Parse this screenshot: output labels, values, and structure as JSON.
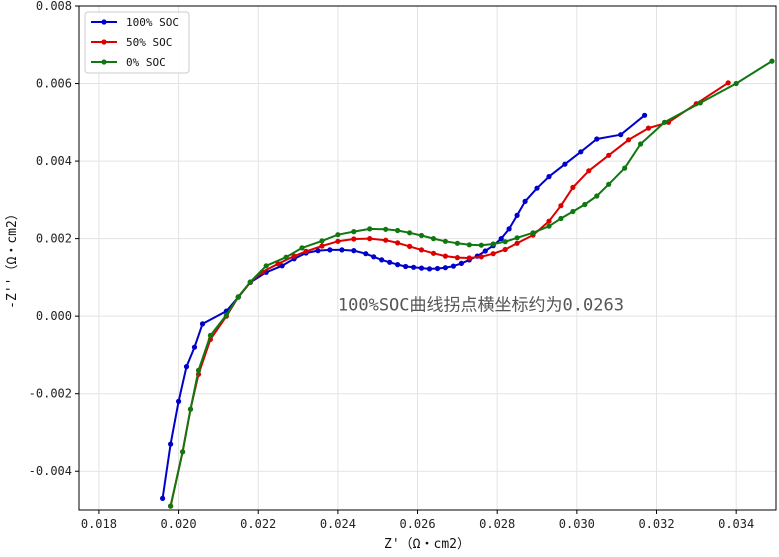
{
  "chart_data": {
    "type": "line",
    "title": "",
    "xlabel": "Z'（Ω・cm2）",
    "ylabel": "-Z''（Ω・cm2）",
    "xlim": [
      0.0175,
      0.035
    ],
    "ylim": [
      -0.005,
      0.008
    ],
    "x_ticks": [
      0.018,
      0.02,
      0.022,
      0.024,
      0.026,
      0.028,
      0.03,
      0.032,
      0.034
    ],
    "x_tick_labels": [
      "0.018",
      "0.020",
      "0.022",
      "0.024",
      "0.026",
      "0.028",
      "0.030",
      "0.032",
      "0.034"
    ],
    "y_ticks": [
      -0.004,
      -0.002,
      0.0,
      0.002,
      0.004,
      0.006,
      0.008
    ],
    "y_tick_labels": [
      "-0.004",
      "-0.002",
      "0.000",
      "0.002",
      "0.004",
      "0.006",
      "0.008"
    ],
    "grid": true,
    "legend_position": "top-left",
    "annotation": {
      "text": "100%SOC曲线拐点横坐标约为0.0263",
      "x": 0.024,
      "y": 0.0003
    },
    "series": [
      {
        "name": "100% SOC",
        "color": "#0000cc",
        "points": [
          [
            0.0196,
            -0.0047
          ],
          [
            0.0198,
            -0.0033
          ],
          [
            0.02,
            -0.0022
          ],
          [
            0.0202,
            -0.0013
          ],
          [
            0.0204,
            -0.0008
          ],
          [
            0.0206,
            -0.0002
          ],
          [
            0.0212,
            0.00013
          ],
          [
            0.0215,
            0.00049
          ],
          [
            0.0218,
            0.00087
          ],
          [
            0.0222,
            0.00113
          ],
          [
            0.0226,
            0.0013
          ],
          [
            0.0229,
            0.00148
          ],
          [
            0.0232,
            0.00163
          ],
          [
            0.0235,
            0.00169
          ],
          [
            0.0238,
            0.00171
          ],
          [
            0.0241,
            0.00171
          ],
          [
            0.0244,
            0.00169
          ],
          [
            0.0247,
            0.00161
          ],
          [
            0.0249,
            0.00153
          ],
          [
            0.0251,
            0.00145
          ],
          [
            0.0253,
            0.00139
          ],
          [
            0.0255,
            0.00133
          ],
          [
            0.0257,
            0.00128
          ],
          [
            0.0259,
            0.00126
          ],
          [
            0.0261,
            0.00124
          ],
          [
            0.0263,
            0.00122
          ],
          [
            0.0265,
            0.00123
          ],
          [
            0.0267,
            0.00125
          ],
          [
            0.0269,
            0.00129
          ],
          [
            0.0271,
            0.00136
          ],
          [
            0.0273,
            0.00145
          ],
          [
            0.0275,
            0.00155
          ],
          [
            0.0277,
            0.00168
          ],
          [
            0.0279,
            0.00182
          ],
          [
            0.0281,
            0.002
          ],
          [
            0.0283,
            0.00225
          ],
          [
            0.0285,
            0.0026
          ],
          [
            0.0287,
            0.00296
          ],
          [
            0.029,
            0.0033
          ],
          [
            0.0293,
            0.0036
          ],
          [
            0.0297,
            0.00392
          ],
          [
            0.0301,
            0.00424
          ],
          [
            0.0305,
            0.00457
          ],
          [
            0.0311,
            0.00468
          ],
          [
            0.0317,
            0.00518
          ]
        ]
      },
      {
        "name": "50% SOC",
        "color": "#dd0000",
        "points": [
          [
            0.0198,
            -0.0049
          ],
          [
            0.0201,
            -0.0035
          ],
          [
            0.0203,
            -0.0024
          ],
          [
            0.0205,
            -0.0015
          ],
          [
            0.0208,
            -0.0006
          ],
          [
            0.0212,
            0.0
          ],
          [
            0.0215,
            0.0005
          ],
          [
            0.0218,
            0.00087
          ],
          [
            0.0221,
            0.00114
          ],
          [
            0.0225,
            0.00135
          ],
          [
            0.0229,
            0.00155
          ],
          [
            0.0232,
            0.00167
          ],
          [
            0.0236,
            0.00181
          ],
          [
            0.024,
            0.00193
          ],
          [
            0.0244,
            0.00199
          ],
          [
            0.0248,
            0.002
          ],
          [
            0.0252,
            0.00196
          ],
          [
            0.0255,
            0.00189
          ],
          [
            0.0258,
            0.0018
          ],
          [
            0.0261,
            0.00171
          ],
          [
            0.0264,
            0.00162
          ],
          [
            0.0267,
            0.00155
          ],
          [
            0.027,
            0.00151
          ],
          [
            0.0273,
            0.0015
          ],
          [
            0.0276,
            0.00153
          ],
          [
            0.0279,
            0.00161
          ],
          [
            0.0282,
            0.00172
          ],
          [
            0.0285,
            0.00188
          ],
          [
            0.0289,
            0.00209
          ],
          [
            0.0293,
            0.00245
          ],
          [
            0.0296,
            0.00285
          ],
          [
            0.0299,
            0.00332
          ],
          [
            0.0303,
            0.00375
          ],
          [
            0.0308,
            0.00415
          ],
          [
            0.0313,
            0.00455
          ],
          [
            0.0318,
            0.00485
          ],
          [
            0.0323,
            0.005
          ],
          [
            0.033,
            0.00548
          ],
          [
            0.0338,
            0.00602
          ]
        ]
      },
      {
        "name": "0% SOC",
        "color": "#117711",
        "points": [
          [
            0.0198,
            -0.0049
          ],
          [
            0.0201,
            -0.0035
          ],
          [
            0.0203,
            -0.0024
          ],
          [
            0.0205,
            -0.0014
          ],
          [
            0.0208,
            -0.0005
          ],
          [
            0.0212,
            3e-05
          ],
          [
            0.0215,
            0.0005
          ],
          [
            0.0218,
            0.00088
          ],
          [
            0.0222,
            0.0013
          ],
          [
            0.0227,
            0.00152
          ],
          [
            0.0231,
            0.00176
          ],
          [
            0.0236,
            0.00194
          ],
          [
            0.024,
            0.0021
          ],
          [
            0.0244,
            0.00218
          ],
          [
            0.0248,
            0.00225
          ],
          [
            0.0252,
            0.00224
          ],
          [
            0.0255,
            0.00221
          ],
          [
            0.0258,
            0.00215
          ],
          [
            0.0261,
            0.00208
          ],
          [
            0.0264,
            0.002
          ],
          [
            0.0267,
            0.00193
          ],
          [
            0.027,
            0.00188
          ],
          [
            0.0273,
            0.00184
          ],
          [
            0.0276,
            0.00183
          ],
          [
            0.0279,
            0.00186
          ],
          [
            0.0282,
            0.00192
          ],
          [
            0.0285,
            0.00202
          ],
          [
            0.0289,
            0.00215
          ],
          [
            0.0293,
            0.00232
          ],
          [
            0.0296,
            0.00252
          ],
          [
            0.0299,
            0.0027
          ],
          [
            0.0302,
            0.00288
          ],
          [
            0.0305,
            0.0031
          ],
          [
            0.0308,
            0.0034
          ],
          [
            0.0312,
            0.00382
          ],
          [
            0.0316,
            0.00444
          ],
          [
            0.0322,
            0.005
          ],
          [
            0.0331,
            0.0055
          ],
          [
            0.034,
            0.006
          ],
          [
            0.0349,
            0.00658
          ]
        ]
      }
    ]
  }
}
